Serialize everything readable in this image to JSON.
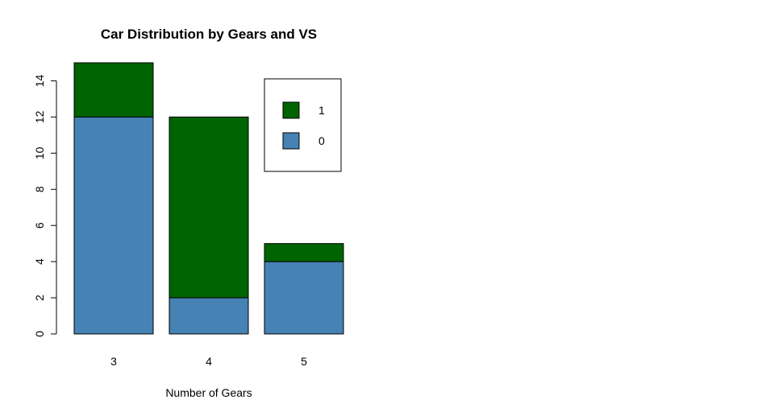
{
  "chart_data": {
    "type": "bar",
    "stacked": true,
    "title": "Car Distribution by Gears and VS",
    "xlabel": "Number of Gears",
    "ylabel": "",
    "categories": [
      "3",
      "4",
      "5"
    ],
    "series": [
      {
        "name": "0",
        "color": "#4682B4",
        "values": [
          12,
          2,
          4
        ]
      },
      {
        "name": "1",
        "color": "#006400",
        "values": [
          3,
          10,
          1
        ]
      }
    ],
    "ylim": [
      0,
      15
    ],
    "yticks": [
      "0",
      "2",
      "4",
      "6",
      "8",
      "10",
      "12",
      "14"
    ],
    "legend": {
      "position": "top-right",
      "entries": [
        {
          "label": "1",
          "color": "#006400"
        },
        {
          "label": "0",
          "color": "#4682B4"
        }
      ]
    },
    "grid": false
  }
}
